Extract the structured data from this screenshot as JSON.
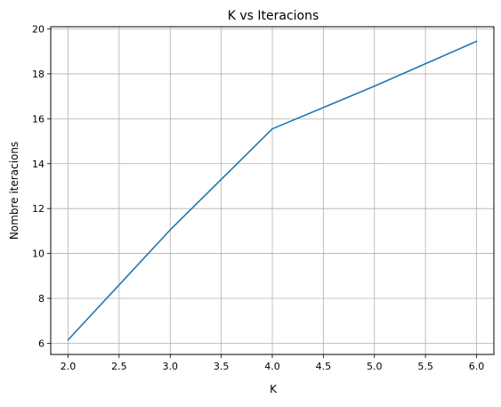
{
  "chart_data": {
    "type": "line",
    "title": "K vs Iteracions",
    "xlabel": "K",
    "ylabel": "Nombre iteracions",
    "x": [
      2,
      3,
      4,
      5,
      6
    ],
    "series": [
      {
        "values": [
          6.15,
          11.05,
          15.55,
          17.45,
          19.45
        ],
        "color": "#1f77b4"
      }
    ],
    "xlim": [
      1.83,
      6.17
    ],
    "ylim": [
      5.5,
      20.1
    ],
    "xticks": [
      2.0,
      2.5,
      3.0,
      3.5,
      4.0,
      4.5,
      5.0,
      5.5,
      6.0
    ],
    "xtick_labels": [
      "2.0",
      "2.5",
      "3.0",
      "3.5",
      "4.0",
      "4.5",
      "5.0",
      "5.5",
      "6.0"
    ],
    "yticks": [
      6,
      8,
      10,
      12,
      14,
      16,
      18,
      20
    ],
    "ytick_labels": [
      "6",
      "8",
      "10",
      "12",
      "14",
      "16",
      "18",
      "20"
    ],
    "grid": true,
    "grid_color": "#b0b0b0"
  }
}
